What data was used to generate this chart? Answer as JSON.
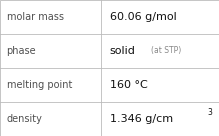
{
  "rows": [
    {
      "label": "molar mass",
      "value": "60.06 g/mol",
      "type": "plain"
    },
    {
      "label": "phase",
      "value": "solid",
      "value_suffix": "(at STP)",
      "type": "suffix"
    },
    {
      "label": "melting point",
      "value": "160 °C",
      "type": "plain"
    },
    {
      "label": "density",
      "value": "1.346 g/cm",
      "superscript": "3",
      "type": "super"
    }
  ],
  "col_split": 0.46,
  "bg_color": "#ffffff",
  "border_color": "#bbbbbb",
  "label_color": "#505050",
  "value_color": "#111111",
  "suffix_color": "#888888",
  "label_fontsize": 7.0,
  "value_fontsize": 8.0,
  "suffix_fontsize": 5.5,
  "super_fontsize": 5.5
}
